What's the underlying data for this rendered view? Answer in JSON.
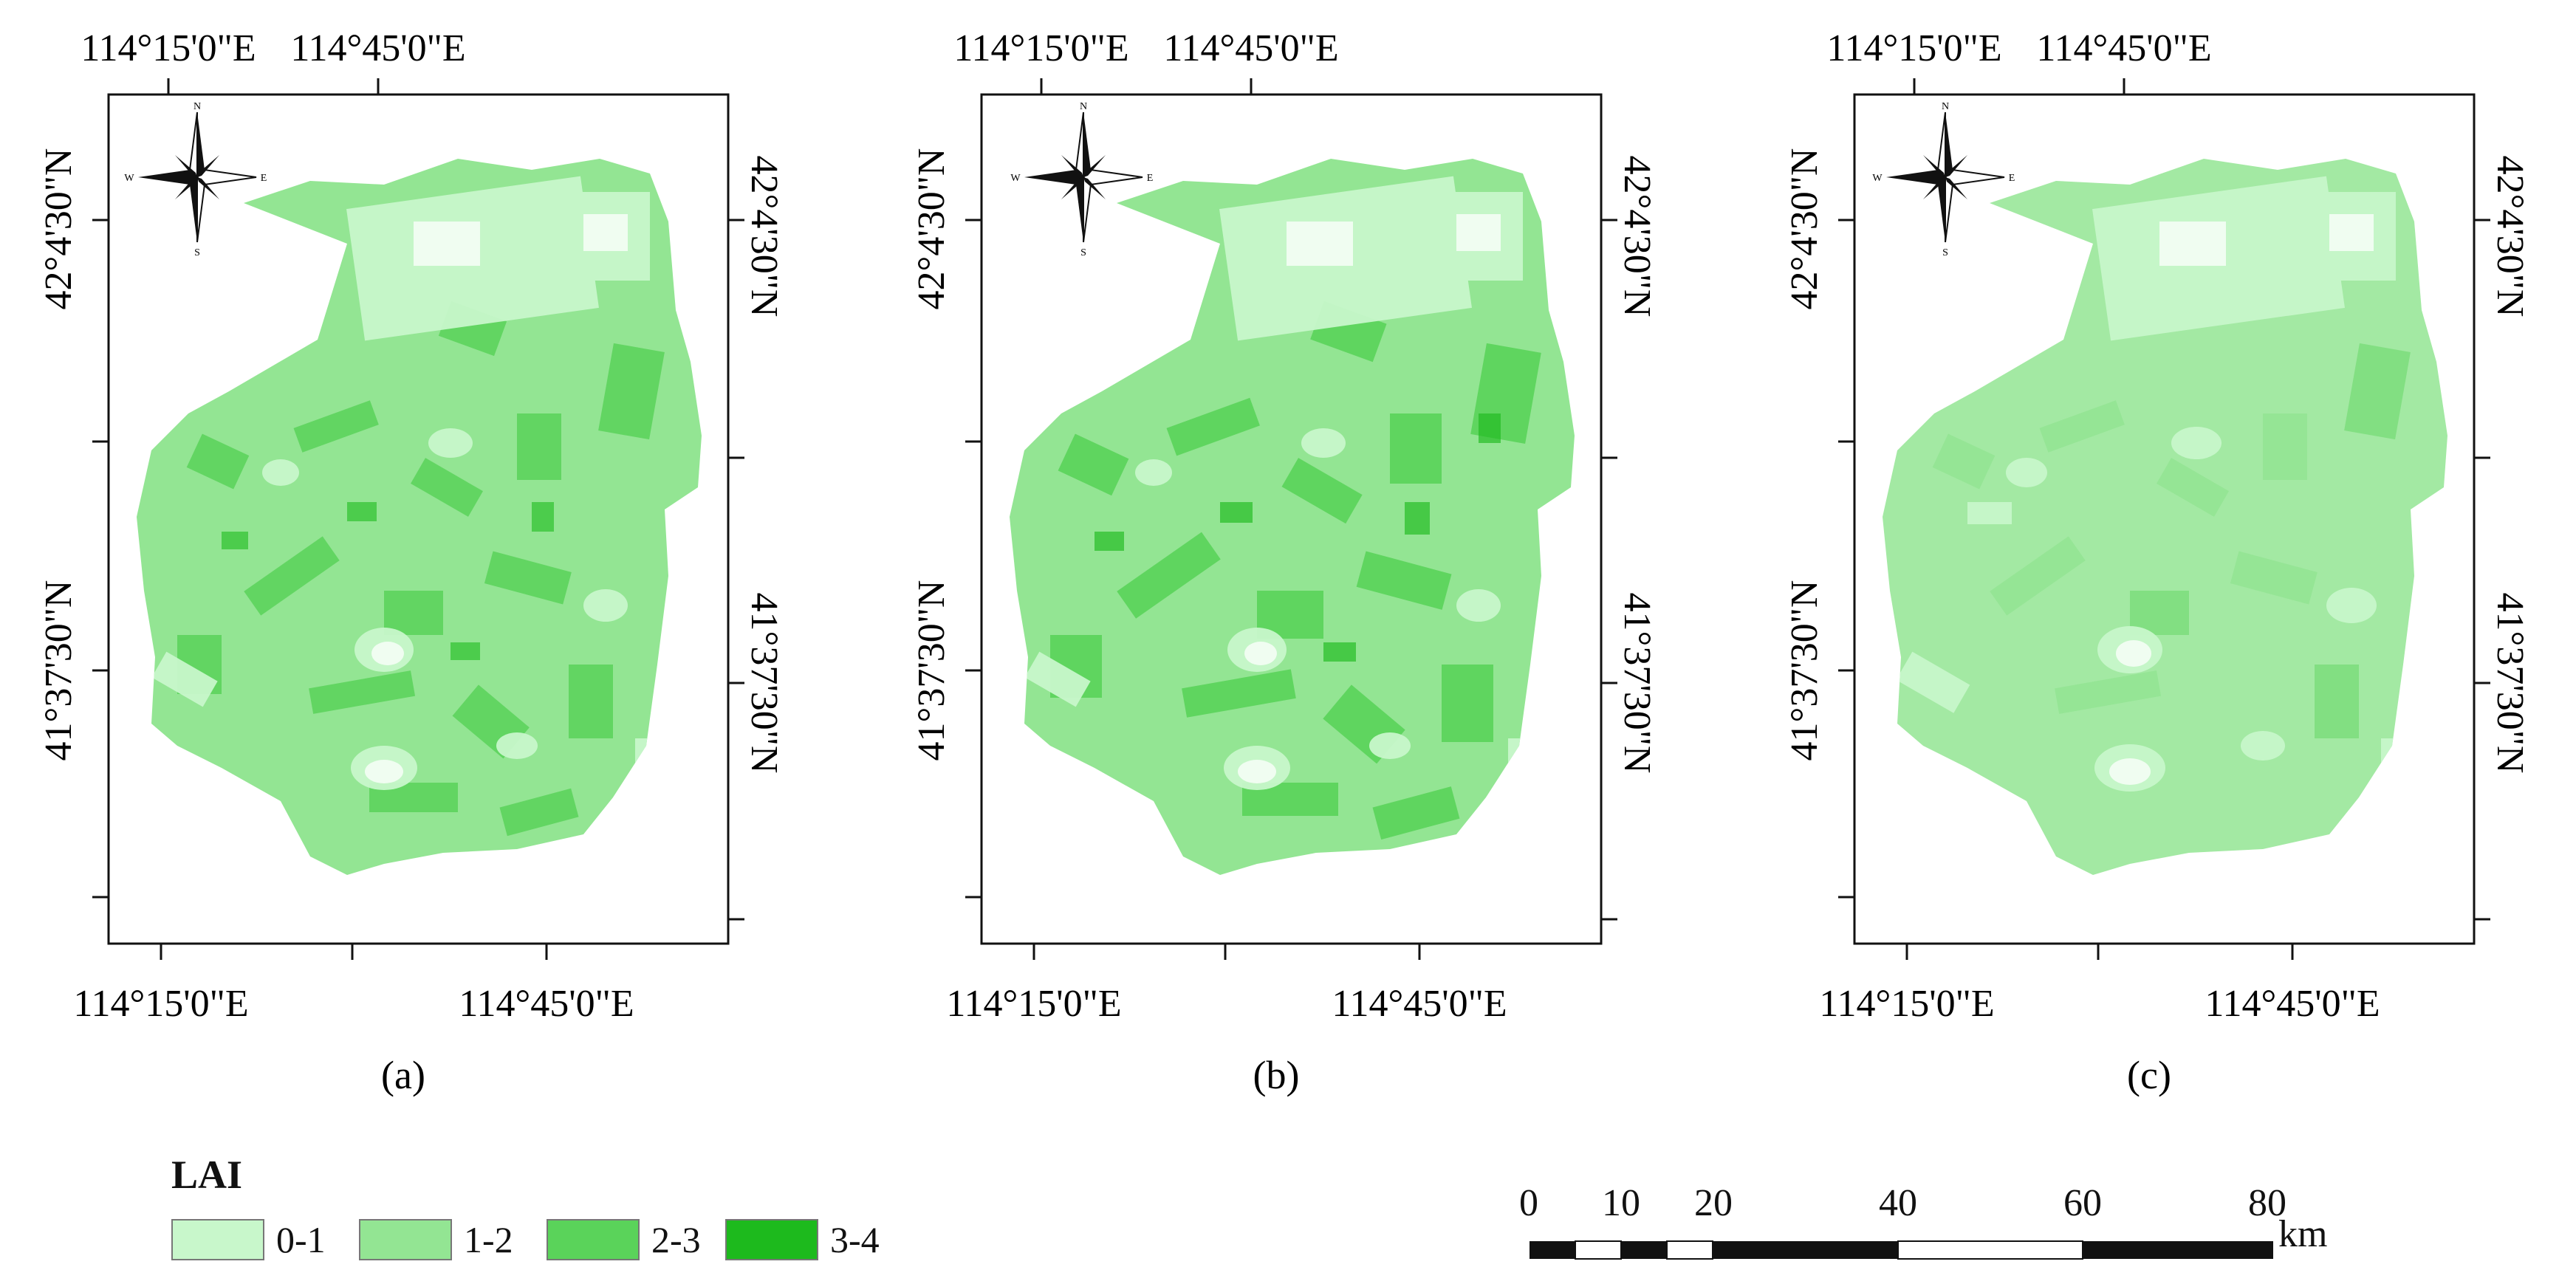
{
  "panels": [
    {
      "caption": "(a)",
      "lon_top": [
        "114°15'0\"E",
        "114°45'0\"E"
      ],
      "lon_bottom": [
        "114°15'0\"E",
        "114°45'0\"E"
      ],
      "lat_left": [
        "42°4'30\"N",
        "41°37'30\"N"
      ],
      "lat_right": [
        "42°4'30\"N",
        "41°37'30\"N"
      ]
    },
    {
      "caption": "(b)",
      "lon_top": [
        "114°15'0\"E",
        "114°45'0\"E"
      ],
      "lon_bottom": [
        "114°15'0\"E",
        "114°45'0\"E"
      ],
      "lat_left": [
        "42°4'30\"N",
        "41°37'30\"N"
      ],
      "lat_right": [
        "42°4'30\"N",
        "41°37'30\"N"
      ]
    },
    {
      "caption": "(c)",
      "lon_top": [
        "114°15'0\"E",
        "114°45'0\"E"
      ],
      "lon_bottom": [
        "114°15'0\"E",
        "114°45'0\"E"
      ],
      "lat_left": [
        "42°4'30\"N",
        "41°37'30\"N"
      ],
      "lat_right": [
        "42°4'30\"N",
        "41°37'30\"N"
      ]
    }
  ],
  "compass": {
    "n": "N",
    "s": "S",
    "e": "E",
    "w": "W"
  },
  "legend": {
    "title": "LAI",
    "items": [
      {
        "label": "0-1",
        "color": "#c8f7cb"
      },
      {
        "label": "1-2",
        "color": "#93e593"
      },
      {
        "label": "2-3",
        "color": "#5ad35a"
      },
      {
        "label": "3-4",
        "color": "#1dba1d"
      }
    ]
  },
  "scale_bar": {
    "ticks": [
      "0",
      "10",
      "20",
      "40",
      "60",
      "80"
    ],
    "unit": "km"
  }
}
